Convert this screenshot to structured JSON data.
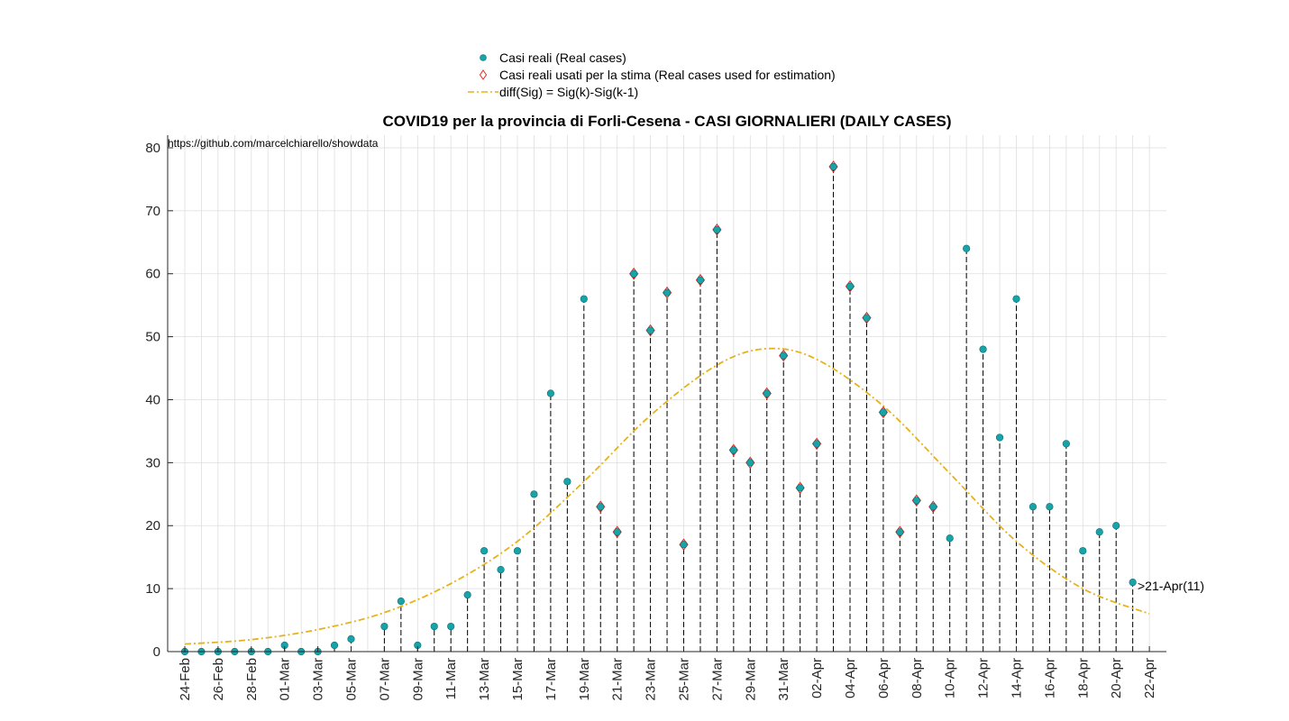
{
  "chart_data": {
    "type": "scatter",
    "title": "COVID19 per la provincia di Forli-Cesena - CASI GIORNALIERI (DAILY CASES)",
    "source": "https://github.com/marcelchiarello/showdata",
    "xlabel": "",
    "ylabel": "",
    "ylim": [
      0,
      82
    ],
    "yticks": [
      0,
      10,
      20,
      30,
      40,
      50,
      60,
      70,
      80
    ],
    "grid": true,
    "legend_position": "top-center",
    "x_tick_labels": [
      "24-Feb",
      "26-Feb",
      "28-Feb",
      "01-Mar",
      "03-Mar",
      "05-Mar",
      "07-Mar",
      "09-Mar",
      "11-Mar",
      "13-Mar",
      "15-Mar",
      "17-Mar",
      "19-Mar",
      "21-Mar",
      "23-Mar",
      "25-Mar",
      "27-Mar",
      "29-Mar",
      "31-Mar",
      "02-Apr",
      "04-Apr",
      "06-Apr",
      "08-Apr",
      "10-Apr",
      "12-Apr",
      "14-Apr",
      "16-Apr",
      "18-Apr",
      "20-Apr",
      "22-Apr"
    ],
    "dates": [
      "24-Feb",
      "25-Feb",
      "26-Feb",
      "27-Feb",
      "28-Feb",
      "29-Feb",
      "01-Mar",
      "02-Mar",
      "03-Mar",
      "04-Mar",
      "05-Mar",
      "06-Mar",
      "07-Mar",
      "08-Mar",
      "09-Mar",
      "10-Mar",
      "11-Mar",
      "12-Mar",
      "13-Mar",
      "14-Mar",
      "15-Mar",
      "16-Mar",
      "17-Mar",
      "18-Mar",
      "19-Mar",
      "20-Mar",
      "21-Mar",
      "22-Mar",
      "23-Mar",
      "24-Mar",
      "25-Mar",
      "26-Mar",
      "27-Mar",
      "28-Mar",
      "29-Mar",
      "30-Mar",
      "31-Mar",
      "01-Apr",
      "02-Apr",
      "03-Apr",
      "04-Apr",
      "05-Apr",
      "06-Apr",
      "07-Apr",
      "08-Apr",
      "09-Apr",
      "10-Apr",
      "11-Apr",
      "12-Apr",
      "13-Apr",
      "14-Apr",
      "15-Apr",
      "16-Apr",
      "17-Apr",
      "18-Apr",
      "19-Apr",
      "20-Apr",
      "21-Apr",
      "22-Apr"
    ],
    "series": [
      {
        "name": "Casi reali (Real cases)",
        "color": "#17a3a8",
        "marker": "circle",
        "values": [
          0,
          0,
          0,
          0,
          0,
          0,
          1,
          0,
          0,
          1,
          2,
          null,
          4,
          8,
          1,
          4,
          4,
          9,
          16,
          13,
          16,
          25,
          41,
          27,
          56,
          23,
          19,
          60,
          51,
          57,
          17,
          59,
          67,
          32,
          30,
          41,
          47,
          26,
          33,
          77,
          58,
          53,
          38,
          19,
          24,
          23,
          18,
          64,
          48,
          34,
          56,
          23,
          23,
          33,
          16,
          19,
          20,
          11
        ]
      },
      {
        "name": "Casi reali usati per la stima (Real cases used for estimation)",
        "color": "#e8281e",
        "marker": "diamond",
        "values": [
          null,
          null,
          null,
          null,
          null,
          null,
          null,
          null,
          null,
          null,
          null,
          null,
          null,
          null,
          null,
          null,
          null,
          null,
          null,
          null,
          null,
          null,
          null,
          null,
          null,
          23,
          19,
          60,
          51,
          57,
          17,
          59,
          67,
          32,
          30,
          41,
          47,
          26,
          33,
          77,
          58,
          53,
          38,
          19,
          24,
          23,
          null,
          null,
          null,
          null,
          null,
          null,
          null,
          null,
          null,
          null,
          null,
          null
        ]
      },
      {
        "name": "diff(Sig) = Sig(k)-Sig(k-1)",
        "color": "#e6b21c",
        "style": "dash-dot",
        "peak": 48.1,
        "peak_date": "30-Mar",
        "x": [
          0,
          4,
          8,
          12,
          16,
          20,
          24,
          28,
          32,
          35,
          38,
          42,
          46,
          50,
          54,
          58
        ],
        "values": [
          1.2,
          1.9,
          3.5,
          6.2,
          10.8,
          17.5,
          27,
          37.5,
          45.5,
          48.1,
          46.4,
          39,
          28.3,
          17.5,
          10,
          6
        ]
      }
    ],
    "annotations": [
      {
        "text": ">21-Apr(11)",
        "x": "21-Apr",
        "y": 11
      }
    ]
  }
}
